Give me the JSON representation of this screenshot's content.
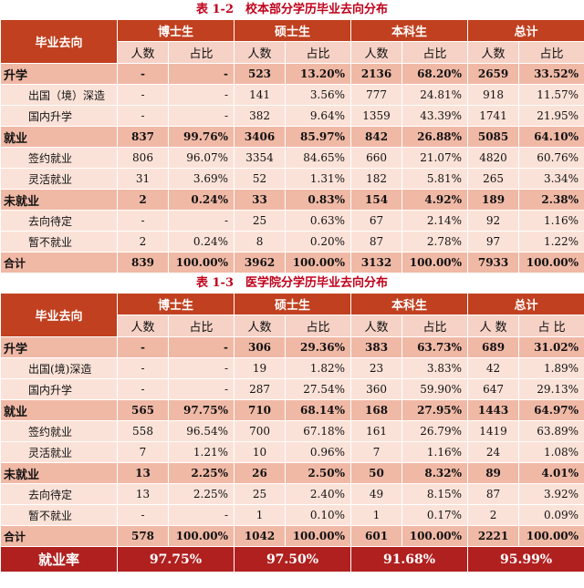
{
  "table1": {
    "caption": "表 1-2　校本部分学历毕业去向分布",
    "header": {
      "destination": "毕业去向",
      "groups": [
        "博士生",
        "硕士生",
        "本科生",
        "总计"
      ],
      "count": "人数",
      "ratio": "占比"
    },
    "rows": [
      {
        "type": "cat",
        "label": "升学",
        "cells": [
          "-",
          "-",
          "523",
          "13.20%",
          "2136",
          "68.20%",
          "2659",
          "33.52%"
        ]
      },
      {
        "type": "row",
        "label": "出国（境）深造",
        "cells": [
          "-",
          "-",
          "141",
          "3.56%",
          "777",
          "24.81%",
          "918",
          "11.57%"
        ]
      },
      {
        "type": "row",
        "label": "国内升学",
        "cells": [
          "-",
          "-",
          "382",
          "9.64%",
          "1359",
          "43.39%",
          "1741",
          "21.95%"
        ]
      },
      {
        "type": "cat",
        "label": "就业",
        "cells": [
          "837",
          "99.76%",
          "3406",
          "85.97%",
          "842",
          "26.88%",
          "5085",
          "64.10%"
        ]
      },
      {
        "type": "row",
        "label": "签约就业",
        "cells": [
          "806",
          "96.07%",
          "3354",
          "84.65%",
          "660",
          "21.07%",
          "4820",
          "60.76%"
        ]
      },
      {
        "type": "row",
        "label": "灵活就业",
        "cells": [
          "31",
          "3.69%",
          "52",
          "1.31%",
          "182",
          "5.81%",
          "265",
          "3.34%"
        ]
      },
      {
        "type": "cat",
        "label": "未就业",
        "cells": [
          "2",
          "0.24%",
          "33",
          "0.83%",
          "154",
          "4.92%",
          "189",
          "2.38%"
        ]
      },
      {
        "type": "row",
        "label": "去向待定",
        "cells": [
          "-",
          "-",
          "25",
          "0.63%",
          "67",
          "2.14%",
          "92",
          "1.16%"
        ]
      },
      {
        "type": "row",
        "label": "暂不就业",
        "cells": [
          "2",
          "0.24%",
          "8",
          "0.20%",
          "87",
          "2.78%",
          "97",
          "1.22%"
        ]
      },
      {
        "type": "tot",
        "label": "合计",
        "cells": [
          "839",
          "100.00%",
          "3962",
          "100.00%",
          "3132",
          "100.00%",
          "7933",
          "100.00%"
        ]
      }
    ]
  },
  "table2": {
    "caption": "表 1-3　医学院分学历毕业去向分布",
    "header": {
      "destination": "毕业去向",
      "groups": [
        "博士生",
        "硕士生",
        "本科生",
        "总计"
      ],
      "count": "人数",
      "ratio": "占比",
      "count_total": "人 数",
      "ratio_total": "占 比"
    },
    "rows": [
      {
        "type": "cat",
        "label": "升学",
        "cells": [
          "-",
          "-",
          "306",
          "29.36%",
          "383",
          "63.73%",
          "689",
          "31.02%"
        ]
      },
      {
        "type": "row",
        "label": "出国(境)深造",
        "cells": [
          "-",
          "-",
          "19",
          "1.82%",
          "23",
          "3.83%",
          "42",
          "1.89%"
        ]
      },
      {
        "type": "row",
        "label": "国内升学",
        "cells": [
          "-",
          "-",
          "287",
          "27.54%",
          "360",
          "59.90%",
          "647",
          "29.13%"
        ]
      },
      {
        "type": "cat",
        "label": "就业",
        "cells": [
          "565",
          "97.75%",
          "710",
          "68.14%",
          "168",
          "27.95%",
          "1443",
          "64.97%"
        ]
      },
      {
        "type": "row",
        "label": "签约就业",
        "cells": [
          "558",
          "96.54%",
          "700",
          "67.18%",
          "161",
          "26.79%",
          "1419",
          "63.89%"
        ]
      },
      {
        "type": "row",
        "label": "灵活就业",
        "cells": [
          "7",
          "1.21%",
          "10",
          "0.96%",
          "7",
          "1.16%",
          "24",
          "1.08%"
        ]
      },
      {
        "type": "cat",
        "label": "未就业",
        "cells": [
          "13",
          "2.25%",
          "26",
          "2.50%",
          "50",
          "8.32%",
          "89",
          "4.01%"
        ]
      },
      {
        "type": "row",
        "label": "去向待定",
        "cells": [
          "13",
          "2.25%",
          "25",
          "2.40%",
          "49",
          "8.15%",
          "87",
          "3.92%"
        ]
      },
      {
        "type": "row",
        "label": "暂不就业",
        "cells": [
          "-",
          "-",
          "1",
          "0.10%",
          "1",
          "0.17%",
          "2",
          "0.09%"
        ]
      },
      {
        "type": "tot",
        "label": "合计",
        "cells": [
          "578",
          "100.00%",
          "1042",
          "100.00%",
          "601",
          "100.00%",
          "2221",
          "100.00%"
        ]
      }
    ],
    "employment_rate": {
      "label": "就业率",
      "values": [
        "97.75%",
        "97.50%",
        "91.68%",
        "95.99%"
      ]
    }
  }
}
